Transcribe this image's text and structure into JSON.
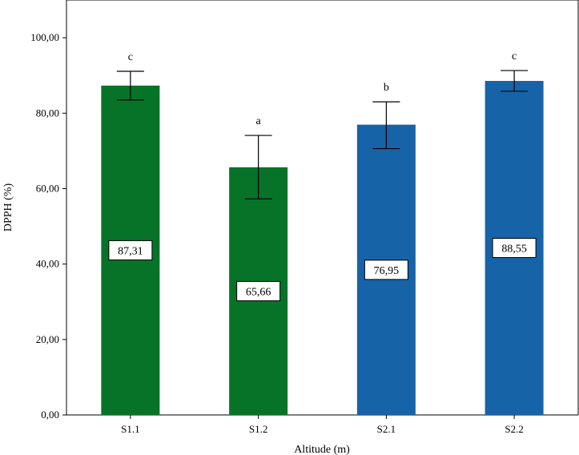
{
  "chart_data": {
    "type": "bar",
    "xlabel": "Altitude (m)",
    "ylabel": "DPPH (%)",
    "ylim": [
      0,
      110
    ],
    "yticks": [
      "0,00",
      "20,00",
      "40,00",
      "60,00",
      "80,00",
      "100,00"
    ],
    "ytick_values": [
      0,
      20,
      40,
      60,
      80,
      100
    ],
    "grid": false,
    "categories": [
      "S1.1",
      "S1.2",
      "S2.1",
      "S2.2"
    ],
    "values": [
      87.31,
      65.66,
      76.95,
      88.55
    ],
    "value_labels": [
      "87,31",
      "65,66",
      "76,95",
      "88,55"
    ],
    "error_low": [
      83.5,
      57.3,
      70.6,
      85.8
    ],
    "error_high": [
      91.1,
      74.1,
      83.0,
      91.3
    ],
    "significance": [
      "c",
      "a",
      "b",
      "c"
    ],
    "colors": [
      "#067329",
      "#067329",
      "#1763a8",
      "#1763a8"
    ]
  }
}
